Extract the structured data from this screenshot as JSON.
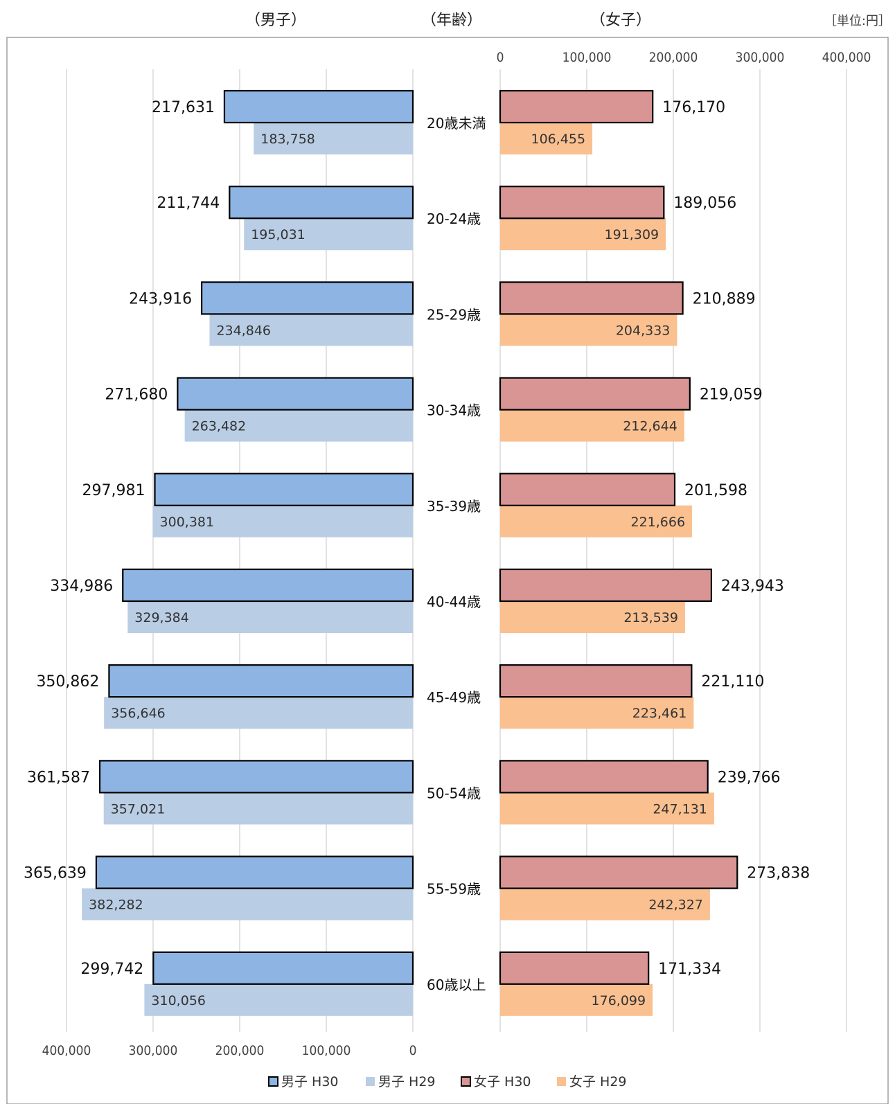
{
  "headers": {
    "male": "（男子）",
    "age": "（年齢）",
    "female": "（女子）",
    "unit": "［単位:円］"
  },
  "chart_data": {
    "type": "bar",
    "orientation": "horizontal-butterfly",
    "categories": [
      "20歳未満",
      "20-24歳",
      "25-29歳",
      "30-34歳",
      "35-39歳",
      "40-44歳",
      "45-49歳",
      "50-54歳",
      "55-59歳",
      "60歳以上"
    ],
    "male": {
      "axis_ticks": [
        "400,000",
        "300,000",
        "200,000",
        "100,000",
        "0"
      ],
      "tick_values": [
        400000,
        300000,
        200000,
        100000,
        0
      ],
      "xlim": [
        0,
        400000
      ],
      "series": [
        {
          "name": "男子 H30",
          "color": "#8EB4E3",
          "labels": [
            "217,631",
            "211,744",
            "243,916",
            "271,680",
            "297,981",
            "334,986",
            "350,862",
            "361,587",
            "365,639",
            "299,742"
          ],
          "values": [
            217631,
            211744,
            243916,
            271680,
            297981,
            334986,
            350862,
            361587,
            365639,
            299742
          ]
        },
        {
          "name": "男子 H29",
          "color": "#B9CDE5",
          "labels": [
            "183,758",
            "195,031",
            "234,846",
            "263,482",
            "300,381",
            "329,384",
            "356,646",
            "357,021",
            "382,282",
            "310,056"
          ],
          "values": [
            183758,
            195031,
            234846,
            263482,
            300381,
            329384,
            356646,
            357021,
            382282,
            310056
          ]
        }
      ]
    },
    "female": {
      "axis_ticks": [
        "0",
        "100,000",
        "200,000",
        "300,000",
        "400,000"
      ],
      "tick_values": [
        0,
        100000,
        200000,
        300000,
        400000
      ],
      "xlim": [
        0,
        400000
      ],
      "series": [
        {
          "name": "女子 H30",
          "color": "#D99594",
          "labels": [
            "176,170",
            "189,056",
            "210,889",
            "219,059",
            "201,598",
            "243,943",
            "221,110",
            "239,766",
            "273,838",
            "171,334"
          ],
          "values": [
            176170,
            189056,
            210889,
            219059,
            201598,
            243943,
            221110,
            239766,
            273838,
            171334
          ]
        },
        {
          "name": "女子 H29",
          "color": "#FAC090",
          "labels": [
            "106,455",
            "191,309",
            "204,333",
            "212,644",
            "221,666",
            "213,539",
            "223,461",
            "247,131",
            "242,327",
            "176,099"
          ],
          "values": [
            106455,
            191309,
            204333,
            212644,
            221666,
            213539,
            223461,
            247131,
            242327,
            176099
          ]
        }
      ]
    },
    "grid": true,
    "legend_placement": "bottom",
    "legend": [
      "男子 H30",
      "男子 H29",
      "女子 H30",
      "女子 H29"
    ]
  }
}
